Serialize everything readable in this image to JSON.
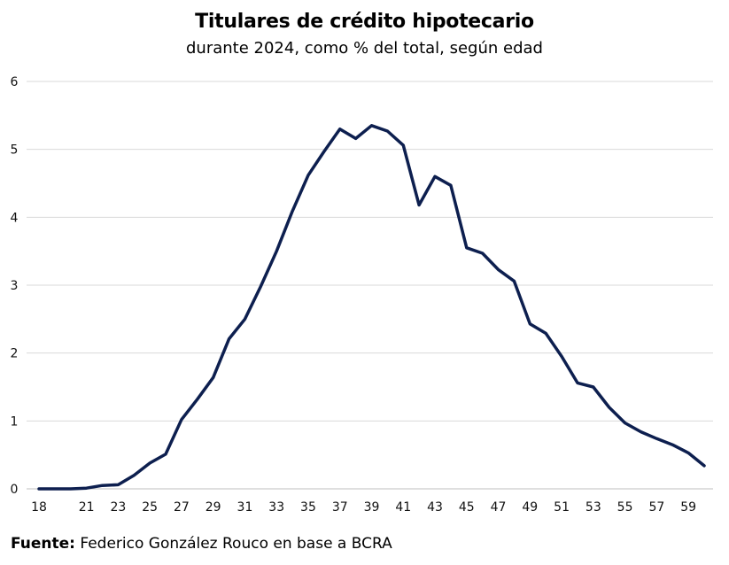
{
  "chart_data": {
    "type": "line",
    "title": "Titulares de crédito hipotecario",
    "subtitle": "durante 2024, como % del total, según edad",
    "xlabel": "",
    "ylabel": "",
    "xlim": [
      18,
      60
    ],
    "ylim": [
      0,
      6
    ],
    "y_ticks": [
      "0",
      "1",
      "2",
      "3",
      "4",
      "5",
      "6"
    ],
    "x_ticks": [
      "18",
      "21",
      "23",
      "25",
      "27",
      "29",
      "31",
      "33",
      "35",
      "37",
      "39",
      "41",
      "43",
      "45",
      "47",
      "49",
      "51",
      "53",
      "55",
      "57",
      "59"
    ],
    "grid": true,
    "line_color": "#0d1f4f",
    "grid_color": "#d9d9d9",
    "series": [
      {
        "x": [
          18,
          19,
          20,
          21,
          22,
          23,
          24,
          25,
          26,
          27,
          28,
          29,
          30,
          31,
          32,
          33,
          34,
          35,
          36,
          37,
          38,
          39,
          40,
          41,
          42,
          43,
          44,
          45,
          46,
          47,
          48,
          49,
          50,
          51,
          52,
          53,
          54,
          55,
          56,
          57,
          58,
          59,
          60
        ],
        "values": [
          0.0,
          0.0,
          0.0,
          0.01,
          0.05,
          0.06,
          0.2,
          0.38,
          0.51,
          1.02,
          1.32,
          1.64,
          2.21,
          2.5,
          2.98,
          3.5,
          4.09,
          4.62,
          4.97,
          5.3,
          5.16,
          5.35,
          5.27,
          5.06,
          4.18,
          4.6,
          4.47,
          3.55,
          3.47,
          3.23,
          3.06,
          2.43,
          2.29,
          1.95,
          1.56,
          1.5,
          1.2,
          0.97,
          0.84,
          0.74,
          0.65,
          0.53,
          0.34
        ]
      }
    ]
  },
  "source": {
    "label": "Fuente:",
    "text": " Federico González Rouco en base a BCRA"
  }
}
